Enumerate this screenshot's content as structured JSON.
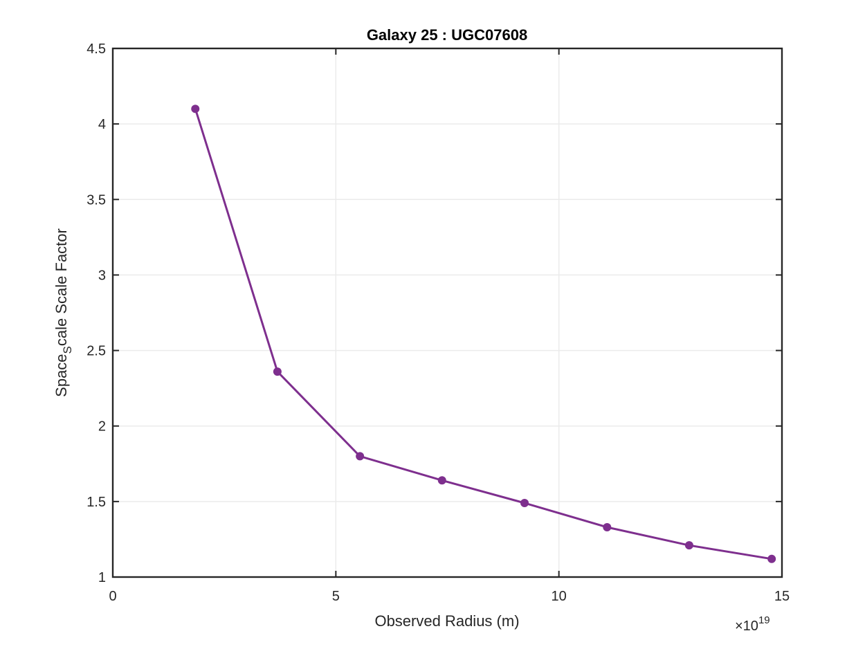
{
  "chart_data": {
    "type": "line",
    "title": "Galaxy 25 : UGC07608",
    "xlabel": "Observed Radius (m)",
    "ylabel_parts": [
      "Space",
      "S",
      "cale Scale Factor"
    ],
    "x_exponent_base": "×10",
    "x_exponent_power": "19",
    "xlim": [
      0,
      15
    ],
    "ylim": [
      1,
      4.5
    ],
    "x_ticks": [
      0,
      5,
      10,
      15
    ],
    "y_ticks": [
      1,
      1.5,
      2,
      2.5,
      3,
      3.5,
      4,
      4.5
    ],
    "x_tick_labels": [
      "0",
      "5",
      "10",
      "15"
    ],
    "y_tick_labels": [
      "1",
      "1.5",
      "2",
      "2.5",
      "3",
      "3.5",
      "4",
      "4.5"
    ],
    "grid": true,
    "series": [
      {
        "color": "#7E2F8E",
        "marker": "circle",
        "x": [
          1.85,
          3.69,
          5.54,
          7.38,
          9.23,
          11.08,
          12.92,
          14.77
        ],
        "y": [
          4.1,
          2.36,
          1.8,
          1.64,
          1.49,
          1.33,
          1.21,
          1.12
        ]
      }
    ]
  }
}
